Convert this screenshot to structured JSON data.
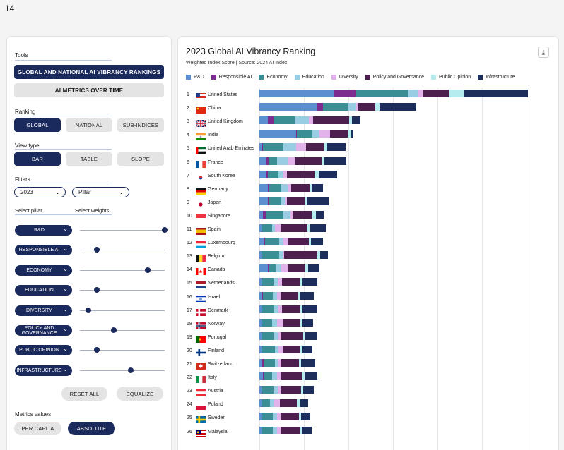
{
  "page_number": "14",
  "tools": {
    "label": "Tools",
    "rankings_button": "GLOBAL AND NATIONAL AI VIBRANCY RANKINGS",
    "metrics_button": "AI METRICS OVER TIME"
  },
  "ranking": {
    "label": "Ranking",
    "options": [
      "GLOBAL",
      "NATIONAL",
      "SUB-INDICES"
    ],
    "selected": "GLOBAL"
  },
  "view_type": {
    "label": "View type",
    "options": [
      "BAR",
      "TABLE",
      "SLOPE"
    ],
    "selected": "BAR"
  },
  "filters": {
    "label": "Filters",
    "year": "2023",
    "pillar": "Pillar"
  },
  "pillars_header": {
    "select_pillar": "Select pillar",
    "select_weights": "Select weights"
  },
  "pillars": [
    {
      "label": "R&D",
      "weight": 1.0
    },
    {
      "label": "RESPONSIBLE AI",
      "weight": 0.2
    },
    {
      "label": "ECONOMY",
      "weight": 0.8
    },
    {
      "label": "EDUCATION",
      "weight": 0.2
    },
    {
      "label": "DIVERSITY",
      "weight": 0.1
    },
    {
      "label": "POLICY AND GOVERNANCE",
      "weight": 0.4
    },
    {
      "label": "PUBLIC OPINION",
      "weight": 0.2
    },
    {
      "label": "INFRASTRUCTURE",
      "weight": 0.6
    }
  ],
  "actions": {
    "reset": "RESET ALL",
    "equalize": "EQUALIZE"
  },
  "metrics_values": {
    "label": "Metrics values",
    "options": [
      "PER CAPITA",
      "ABSOLUTE"
    ],
    "selected": "ABSOLUTE"
  },
  "chart_data": {
    "type": "bar",
    "orientation": "horizontal-stacked",
    "title": "2023 Global AI Vibrancy Ranking",
    "subtitle": "Weighted Index Score | Source: 2024 AI Index",
    "legend": [
      {
        "name": "R&D",
        "color": "#5b8fd0"
      },
      {
        "name": "Responsible AI",
        "color": "#7c2b8e"
      },
      {
        "name": "Economy",
        "color": "#3c8e95"
      },
      {
        "name": "Education",
        "color": "#98cde4"
      },
      {
        "name": "Diversity",
        "color": "#e2b3ea"
      },
      {
        "name": "Policy and Governance",
        "color": "#4d1f4f"
      },
      {
        "name": "Public Opinion",
        "color": "#b5ecef"
      },
      {
        "name": "Infrastructure",
        "color": "#1d2d5c"
      }
    ],
    "rows": [
      {
        "rank": "1",
        "country": "United States",
        "flag": "us",
        "values": [
          107,
          32,
          75,
          15,
          6,
          38,
          21,
          93
        ]
      },
      {
        "rank": "2",
        "country": "China",
        "flag": "cn",
        "values": [
          82,
          10,
          35,
          12,
          4,
          24,
          6,
          53
        ]
      },
      {
        "rank": "3",
        "country": "United Kingdom",
        "flag": "gb",
        "values": [
          12,
          8,
          31,
          20,
          6,
          52,
          4,
          13
        ]
      },
      {
        "rank": "4",
        "country": "India",
        "flag": "in",
        "values": [
          53,
          1,
          22,
          11,
          15,
          25,
          5,
          3
        ]
      },
      {
        "rank": "5",
        "country": "United Arab Emirates",
        "flag": "ae",
        "values": [
          4,
          1,
          30,
          18,
          14,
          26,
          4,
          27
        ]
      },
      {
        "rank": "6",
        "country": "France",
        "flag": "fr",
        "values": [
          10,
          3,
          12,
          17,
          9,
          40,
          3,
          31
        ]
      },
      {
        "rank": "7",
        "country": "South Korea",
        "flag": "kr",
        "values": [
          10,
          2,
          16,
          6,
          6,
          39,
          7,
          26
        ]
      },
      {
        "rank": "8",
        "country": "Germany",
        "flag": "de",
        "values": [
          12,
          2,
          18,
          9,
          5,
          26,
          3,
          17
        ]
      },
      {
        "rank": "9",
        "country": "Japan",
        "flag": "jp",
        "values": [
          12,
          1,
          19,
          5,
          3,
          26,
          2,
          32
        ]
      },
      {
        "rank": "10",
        "country": "Singapore",
        "flag": "sg",
        "values": [
          5,
          4,
          26,
          10,
          3,
          27,
          6,
          12
        ]
      },
      {
        "rank": "11",
        "country": "Spain",
        "flag": "es",
        "values": [
          3,
          1,
          14,
          4,
          9,
          38,
          4,
          23
        ]
      },
      {
        "rank": "12",
        "country": "Luxembourg",
        "flag": "lu",
        "values": [
          7,
          1,
          21,
          6,
          7,
          29,
          3,
          18
        ]
      },
      {
        "rank": "13",
        "country": "Belgium",
        "flag": "be",
        "values": [
          3,
          1,
          25,
          5,
          2,
          48,
          4,
          11
        ]
      },
      {
        "rank": "14",
        "country": "Canada",
        "flag": "ca",
        "values": [
          12,
          2,
          9,
          9,
          9,
          25,
          4,
          17
        ]
      },
      {
        "rank": "15",
        "country": "Netherlands",
        "flag": "nl",
        "values": [
          3,
          1,
          16,
          7,
          6,
          25,
          4,
          22
        ]
      },
      {
        "rank": "16",
        "country": "Israel",
        "flag": "il",
        "values": [
          4,
          1,
          14,
          7,
          5,
          24,
          3,
          20
        ]
      },
      {
        "rank": "17",
        "country": "Denmark",
        "flag": "dk",
        "values": [
          3,
          1,
          17,
          7,
          5,
          26,
          3,
          21
        ]
      },
      {
        "rank": "18",
        "country": "Norway",
        "flag": "no",
        "values": [
          3,
          1,
          14,
          7,
          9,
          25,
          3,
          15
        ]
      },
      {
        "rank": "19",
        "country": "Portugal",
        "flag": "pt",
        "values": [
          3,
          1,
          16,
          6,
          5,
          32,
          3,
          17
        ]
      },
      {
        "rank": "20",
        "country": "Finland",
        "flag": "fi",
        "values": [
          3,
          1,
          18,
          6,
          6,
          25,
          3,
          14
        ]
      },
      {
        "rank": "21",
        "country": "Switzerland",
        "flag": "ch",
        "values": [
          3,
          3,
          16,
          4,
          6,
          25,
          3,
          21
        ]
      },
      {
        "rank": "22",
        "country": "Italy",
        "flag": "it",
        "values": [
          5,
          2,
          11,
          7,
          7,
          30,
          3,
          19
        ]
      },
      {
        "rank": "23",
        "country": "Austria",
        "flag": "at",
        "values": [
          3,
          1,
          16,
          7,
          5,
          28,
          3,
          15
        ]
      },
      {
        "rank": "24",
        "country": "Poland",
        "flag": "pl",
        "values": [
          3,
          1,
          11,
          6,
          9,
          24,
          5,
          11
        ]
      },
      {
        "rank": "25",
        "country": "Sweden",
        "flag": "se",
        "values": [
          3,
          1,
          15,
          6,
          6,
          26,
          3,
          13
        ]
      },
      {
        "rank": "26",
        "country": "Malaysia",
        "flag": "my",
        "values": [
          3,
          1,
          15,
          6,
          6,
          27,
          3,
          14
        ]
      }
    ]
  }
}
